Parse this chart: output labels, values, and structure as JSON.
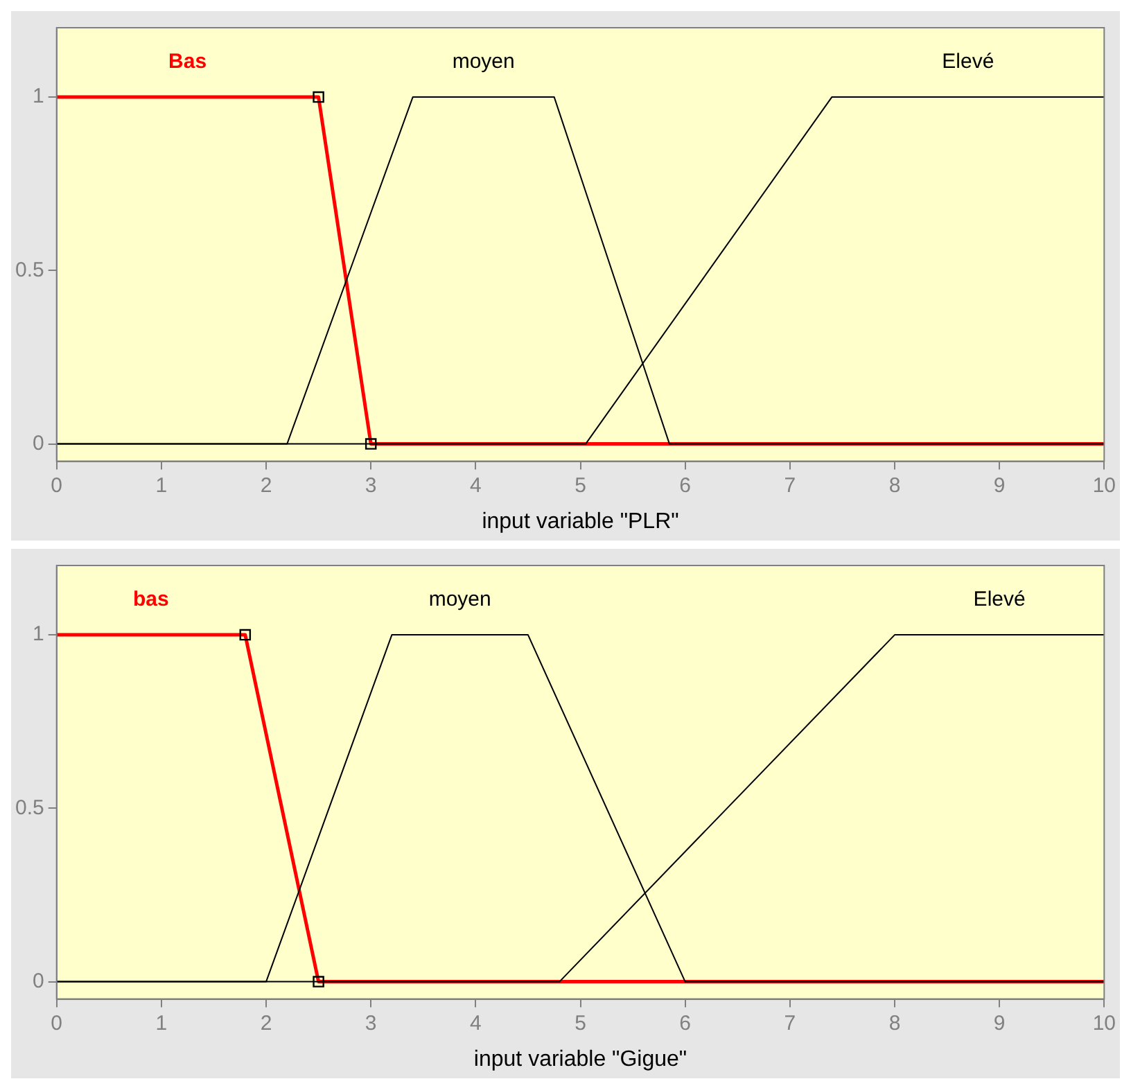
{
  "chart_data": [
    {
      "type": "line",
      "xlabel": "input variable \"PLR\"",
      "xlim": [
        0,
        10
      ],
      "xticks": [
        0,
        1,
        2,
        3,
        4,
        5,
        6,
        7,
        8,
        9,
        10
      ],
      "ylim": [
        -0.05,
        1.2
      ],
      "yticks": [
        0,
        0.5,
        1
      ],
      "grid": false,
      "legend": false,
      "series": [
        {
          "name": "Bas",
          "color": "#ff0000",
          "x": [
            0,
            2.5,
            3,
            10
          ],
          "values": [
            1,
            1,
            0,
            0
          ],
          "marker": "square"
        },
        {
          "name": "moyen",
          "color": "#000000",
          "x": [
            0,
            2.2,
            3.4,
            4.75,
            5.85,
            10
          ],
          "values": [
            0,
            0,
            1,
            1,
            0,
            0
          ],
          "marker": "none"
        },
        {
          "name": "Elevé",
          "color": "#000000",
          "x": [
            0,
            5.05,
            7.4,
            10
          ],
          "values": [
            0,
            0,
            1,
            1
          ],
          "marker": "none"
        }
      ]
    },
    {
      "type": "line",
      "xlabel": "input variable \"Gigue\"",
      "xlim": [
        0,
        10
      ],
      "xticks": [
        0,
        1,
        2,
        3,
        4,
        5,
        6,
        7,
        8,
        9,
        10
      ],
      "ylim": [
        -0.05,
        1.2
      ],
      "yticks": [
        0,
        0.5,
        1
      ],
      "grid": false,
      "legend": false,
      "series": [
        {
          "name": "bas",
          "color": "#ff0000",
          "x": [
            0,
            1.8,
            2.5,
            10
          ],
          "values": [
            1,
            1,
            0,
            0
          ],
          "marker": "square"
        },
        {
          "name": "moyen",
          "color": "#000000",
          "x": [
            0,
            2,
            3.2,
            4.5,
            6,
            10
          ],
          "values": [
            0,
            0,
            1,
            1,
            0,
            0
          ],
          "marker": "none"
        },
        {
          "name": "Elevé",
          "color": "#000000",
          "x": [
            0,
            4.8,
            8,
            10
          ],
          "values": [
            0,
            0,
            1,
            1
          ],
          "marker": "none"
        }
      ]
    }
  ]
}
